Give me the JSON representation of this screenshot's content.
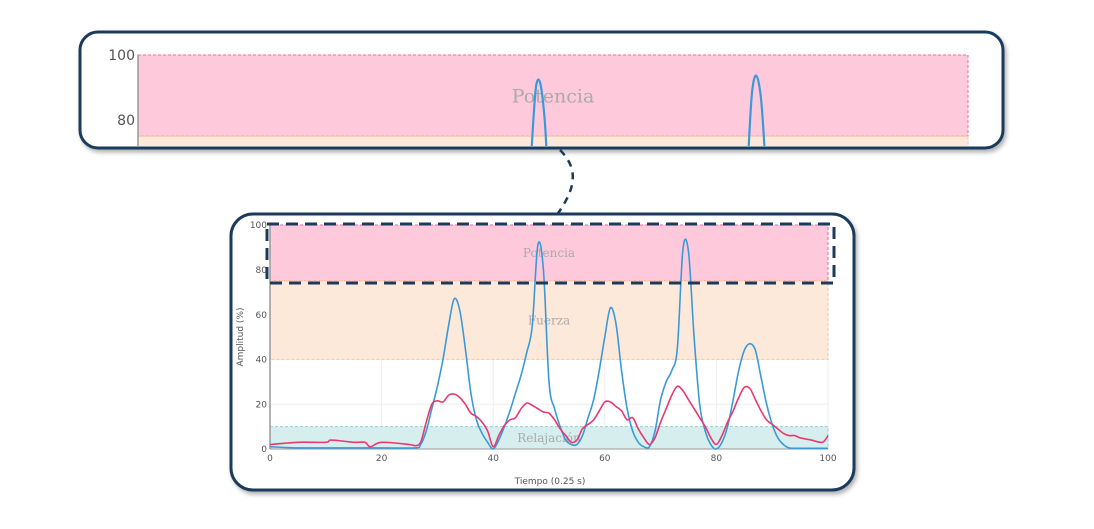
{
  "colors": {
    "frame": "#1c3a5c",
    "series_emg": "#3a9ad9",
    "series_force": "#e8396e",
    "band_potencia": "#ffc9dc",
    "band_fuerza": "#fde9d9",
    "band_relajacion": "#d6eeee"
  },
  "chart_data": {
    "type": "line",
    "xlabel": "Tiempo (0.25 s)",
    "ylabel": "Amplitud (%)",
    "xlim": [
      0,
      100
    ],
    "ylim": [
      0,
      100
    ],
    "x_ticks": [
      "0",
      "20",
      "40",
      "60",
      "80",
      "100"
    ],
    "y_ticks": [
      "0",
      "20",
      "40",
      "60",
      "80",
      "100"
    ],
    "grid": true,
    "bands": [
      {
        "label": "Potencia",
        "from": 75,
        "to": 100,
        "color": "#ffc9dc",
        "border": "#f06a9a"
      },
      {
        "label": "Fuerza",
        "from": 40,
        "to": 75,
        "color": "#fde9d9",
        "border": "#f5c69a"
      },
      {
        "label": "Relajación",
        "from": 0,
        "to": 10,
        "color": "#d6eeee",
        "border": "#8fd3d3"
      }
    ],
    "series": [
      {
        "name": "blue",
        "color": "#3a9ad9",
        "points": [
          [
            0,
            1
          ],
          [
            5,
            0.5
          ],
          [
            10,
            0.5
          ],
          [
            20,
            0.5
          ],
          [
            26,
            0.5
          ],
          [
            27,
            2
          ],
          [
            28,
            8
          ],
          [
            29,
            18
          ],
          [
            30,
            28
          ],
          [
            31,
            40
          ],
          [
            32,
            55
          ],
          [
            33,
            67
          ],
          [
            34,
            62
          ],
          [
            35,
            45
          ],
          [
            36,
            25
          ],
          [
            37,
            13
          ],
          [
            38,
            7
          ],
          [
            39,
            3
          ],
          [
            40,
            0
          ],
          [
            41,
            4
          ],
          [
            42,
            10
          ],
          [
            43,
            17
          ],
          [
            44,
            25
          ],
          [
            45,
            33
          ],
          [
            46,
            43
          ],
          [
            47,
            55
          ],
          [
            48,
            91
          ],
          [
            49,
            80
          ],
          [
            50,
            30
          ],
          [
            51,
            18
          ],
          [
            52,
            10
          ],
          [
            53,
            4
          ],
          [
            54,
            2
          ],
          [
            55,
            2
          ],
          [
            56,
            6
          ],
          [
            57,
            14
          ],
          [
            58,
            22
          ],
          [
            59,
            35
          ],
          [
            60,
            50
          ],
          [
            61,
            63
          ],
          [
            62,
            56
          ],
          [
            63,
            35
          ],
          [
            64,
            18
          ],
          [
            65,
            8
          ],
          [
            66,
            3
          ],
          [
            67,
            1
          ],
          [
            68,
            1
          ],
          [
            69,
            8
          ],
          [
            70,
            22
          ],
          [
            71,
            30
          ],
          [
            72,
            35
          ],
          [
            73,
            45
          ],
          [
            74,
            89
          ],
          [
            75,
            88
          ],
          [
            76,
            50
          ],
          [
            77,
            20
          ],
          [
            78,
            8
          ],
          [
            79,
            2
          ],
          [
            80,
            0
          ],
          [
            81,
            3
          ],
          [
            82,
            10
          ],
          [
            83,
            22
          ],
          [
            84,
            35
          ],
          [
            85,
            44
          ],
          [
            86,
            47
          ],
          [
            87,
            44
          ],
          [
            88,
            32
          ],
          [
            89,
            20
          ],
          [
            90,
            11
          ],
          [
            91,
            5
          ],
          [
            92,
            2
          ],
          [
            93,
            0.5
          ],
          [
            95,
            0.3
          ],
          [
            100,
            0.3
          ]
        ]
      },
      {
        "name": "red",
        "color": "#e8396e",
        "points": [
          [
            0,
            2
          ],
          [
            5,
            3
          ],
          [
            10,
            3
          ],
          [
            11,
            4
          ],
          [
            15,
            3
          ],
          [
            17,
            3
          ],
          [
            18,
            1
          ],
          [
            20,
            3
          ],
          [
            25,
            2
          ],
          [
            26,
            1.5
          ],
          [
            27,
            3
          ],
          [
            28,
            12
          ],
          [
            29,
            20
          ],
          [
            30,
            21.5
          ],
          [
            31,
            21
          ],
          [
            32,
            24
          ],
          [
            33,
            24.5
          ],
          [
            34,
            23
          ],
          [
            35,
            20
          ],
          [
            36,
            16
          ],
          [
            37,
            14.5
          ],
          [
            38,
            12
          ],
          [
            39,
            8
          ],
          [
            40,
            1
          ],
          [
            41,
            6
          ],
          [
            42,
            10.5
          ],
          [
            43,
            13
          ],
          [
            44,
            14
          ],
          [
            45,
            18
          ],
          [
            46,
            20.5
          ],
          [
            47,
            19.5
          ],
          [
            48,
            18
          ],
          [
            49,
            16.5
          ],
          [
            50,
            16
          ],
          [
            51,
            13
          ],
          [
            52,
            9
          ],
          [
            53,
            6
          ],
          [
            54,
            3
          ],
          [
            55,
            4
          ],
          [
            56,
            9
          ],
          [
            57,
            11
          ],
          [
            58,
            13
          ],
          [
            59,
            17
          ],
          [
            60,
            21
          ],
          [
            61,
            21
          ],
          [
            62,
            19
          ],
          [
            63,
            17
          ],
          [
            64,
            13
          ],
          [
            65,
            14
          ],
          [
            66,
            9
          ],
          [
            67,
            5
          ],
          [
            68,
            2
          ],
          [
            69,
            5
          ],
          [
            70,
            12
          ],
          [
            71,
            18
          ],
          [
            72,
            24
          ],
          [
            73,
            28
          ],
          [
            74,
            26
          ],
          [
            75,
            22
          ],
          [
            76,
            18
          ],
          [
            77,
            14
          ],
          [
            78,
            10
          ],
          [
            79,
            5
          ],
          [
            80,
            2
          ],
          [
            81,
            6
          ],
          [
            82,
            12
          ],
          [
            83,
            17
          ],
          [
            84,
            23
          ],
          [
            85,
            27.5
          ],
          [
            86,
            27
          ],
          [
            87,
            22
          ],
          [
            88,
            17
          ],
          [
            89,
            13
          ],
          [
            90,
            11
          ],
          [
            91,
            9
          ],
          [
            92,
            7
          ],
          [
            93,
            6
          ],
          [
            94,
            6
          ],
          [
            95,
            5
          ],
          [
            97,
            4
          ],
          [
            99,
            3
          ],
          [
            100,
            6
          ]
        ]
      }
    ],
    "zoom_inset": {
      "y_ticks": [
        "80",
        "100"
      ],
      "band_label": "Potencia"
    }
  }
}
